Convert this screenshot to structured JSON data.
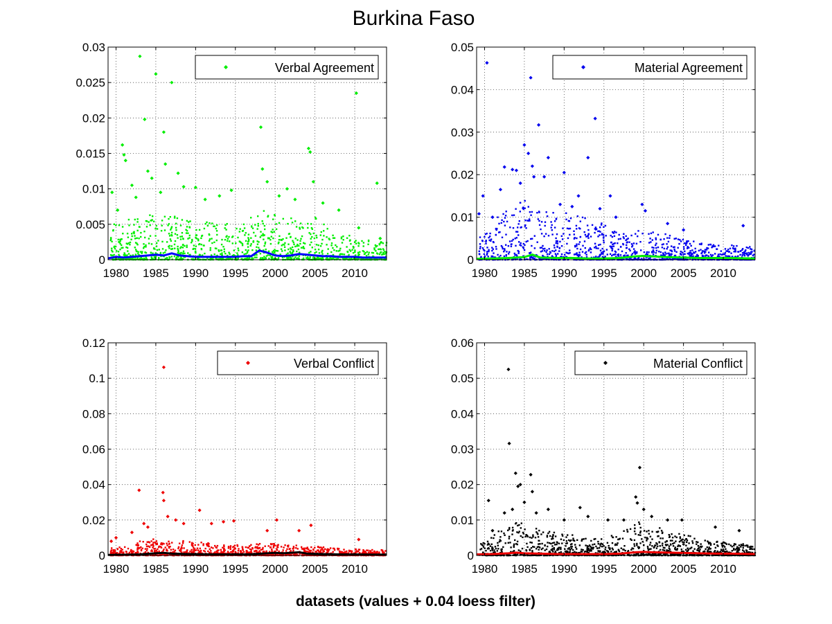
{
  "figure": {
    "title": "Burkina Faso",
    "xlabel": "datasets (values + 0.04 loess filter)"
  },
  "chart_data": [
    {
      "type": "scatter",
      "legend": "Verbal Agreement",
      "legend_position": "top-right",
      "grid": true,
      "xlim": [
        1979,
        2014
      ],
      "ylim": [
        0,
        0.03
      ],
      "xticks": [
        1980,
        1985,
        1990,
        1995,
        2000,
        2005,
        2010
      ],
      "yticks": [
        0,
        0.005,
        0.01,
        0.015,
        0.02,
        0.025,
        0.03
      ],
      "ytick_labels": [
        "0",
        "0.005",
        "0.01",
        "0.015",
        "0.02",
        "0.025",
        "0.03"
      ],
      "marker_color": "#00ee00",
      "trend_color": "#0000ff",
      "points": [
        [
          1979.5,
          0.0095
        ],
        [
          1980.2,
          0.007
        ],
        [
          1980.8,
          0.0162
        ],
        [
          1981.0,
          0.0148
        ],
        [
          1981.2,
          0.014
        ],
        [
          1982.0,
          0.0105
        ],
        [
          1982.5,
          0.0088
        ],
        [
          1983.0,
          0.0287
        ],
        [
          1983.6,
          0.0198
        ],
        [
          1984.0,
          0.0125
        ],
        [
          1984.5,
          0.0115
        ],
        [
          1985.0,
          0.0262
        ],
        [
          1985.6,
          0.0095
        ],
        [
          1986.0,
          0.018
        ],
        [
          1986.2,
          0.0135
        ],
        [
          1987.0,
          0.025
        ],
        [
          1987.8,
          0.0122
        ],
        [
          1988.5,
          0.0103
        ],
        [
          1990.0,
          0.0102
        ],
        [
          1991.2,
          0.0085
        ],
        [
          1993.0,
          0.009
        ],
        [
          1994.5,
          0.0098
        ],
        [
          1998.2,
          0.0187
        ],
        [
          1998.4,
          0.0128
        ],
        [
          1999.0,
          0.011
        ],
        [
          2000.5,
          0.009
        ],
        [
          2001.5,
          0.01
        ],
        [
          2002.5,
          0.0085
        ],
        [
          2004.2,
          0.0157
        ],
        [
          2004.4,
          0.0152
        ],
        [
          2004.8,
          0.011
        ],
        [
          2006.0,
          0.008
        ],
        [
          2008.0,
          0.007
        ],
        [
          2010.2,
          0.0235
        ],
        [
          2010.5,
          0.0045
        ],
        [
          2012.8,
          0.0108
        ],
        [
          2013.2,
          0.003
        ]
      ],
      "density": [
        [
          1979,
          0.004
        ],
        [
          1982,
          0.005
        ],
        [
          1985,
          0.0055
        ],
        [
          1988,
          0.005
        ],
        [
          1991,
          0.0045
        ],
        [
          1994,
          0.0045
        ],
        [
          1997,
          0.005
        ],
        [
          1999,
          0.006
        ],
        [
          2001,
          0.0055
        ],
        [
          2003,
          0.005
        ],
        [
          2005,
          0.005
        ],
        [
          2007,
          0.0035
        ],
        [
          2009,
          0.003
        ],
        [
          2011,
          0.0025
        ],
        [
          2014,
          0.002
        ]
      ],
      "trend": [
        [
          1979,
          0.0002
        ],
        [
          1980,
          0.0004
        ],
        [
          1981,
          0.0003
        ],
        [
          1982,
          0.0004
        ],
        [
          1983,
          0.0005
        ],
        [
          1984,
          0.0006
        ],
        [
          1985,
          0.0007
        ],
        [
          1986,
          0.0006
        ],
        [
          1987,
          0.0009
        ],
        [
          1988,
          0.0006
        ],
        [
          1989,
          0.0005
        ],
        [
          1990,
          0.0004
        ],
        [
          1991,
          0.0004
        ],
        [
          1992,
          0.0004
        ],
        [
          1993,
          0.0004
        ],
        [
          1994,
          0.0004
        ],
        [
          1995,
          0.0004
        ],
        [
          1996,
          0.0005
        ],
        [
          1997,
          0.0005
        ],
        [
          1998,
          0.0013
        ],
        [
          1999,
          0.001
        ],
        [
          2000,
          0.0006
        ],
        [
          2001,
          0.0005
        ],
        [
          2002,
          0.0006
        ],
        [
          2003,
          0.0008
        ],
        [
          2004,
          0.0007
        ],
        [
          2005,
          0.0006
        ],
        [
          2006,
          0.0005
        ],
        [
          2007,
          0.0005
        ],
        [
          2008,
          0.0004
        ],
        [
          2009,
          0.0004
        ],
        [
          2010,
          0.0004
        ],
        [
          2011,
          0.0003
        ],
        [
          2012,
          0.0003
        ],
        [
          2013,
          0.0003
        ],
        [
          2014,
          0.0003
        ]
      ]
    },
    {
      "type": "scatter",
      "legend": "Material Agreement",
      "legend_position": "top-right",
      "grid": true,
      "xlim": [
        1979,
        2014
      ],
      "ylim": [
        0,
        0.05
      ],
      "xticks": [
        1980,
        1985,
        1990,
        1995,
        2000,
        2005,
        2010
      ],
      "yticks": [
        0,
        0.01,
        0.02,
        0.03,
        0.04,
        0.05
      ],
      "ytick_labels": [
        "0",
        "0.01",
        "0.02",
        "0.03",
        "0.04",
        "0.05"
      ],
      "marker_color": "#0000ee",
      "trend_color": "#00ee00",
      "points": [
        [
          1979.3,
          0.0108
        ],
        [
          1979.8,
          0.015
        ],
        [
          1980.3,
          0.0463
        ],
        [
          1981.0,
          0.01
        ],
        [
          1982.0,
          0.0165
        ],
        [
          1982.5,
          0.0218
        ],
        [
          1983.5,
          0.0212
        ],
        [
          1984.0,
          0.021
        ],
        [
          1984.5,
          0.018
        ],
        [
          1985.0,
          0.027
        ],
        [
          1985.5,
          0.025
        ],
        [
          1985.8,
          0.0428
        ],
        [
          1986.0,
          0.022
        ],
        [
          1986.2,
          0.0195
        ],
        [
          1986.8,
          0.0317
        ],
        [
          1987.5,
          0.0195
        ],
        [
          1988.0,
          0.024
        ],
        [
          1989.5,
          0.013
        ],
        [
          1990.0,
          0.0205
        ],
        [
          1991.0,
          0.0125
        ],
        [
          1991.8,
          0.015
        ],
        [
          1993.0,
          0.024
        ],
        [
          1993.9,
          0.0332
        ],
        [
          1994.5,
          0.012
        ],
        [
          1995.8,
          0.015
        ],
        [
          1996.5,
          0.01
        ],
        [
          1999.8,
          0.013
        ],
        [
          2000.2,
          0.0115
        ],
        [
          2003.0,
          0.0085
        ],
        [
          2005.0,
          0.007
        ],
        [
          2012.5,
          0.008
        ]
      ],
      "density": [
        [
          1979,
          0.006
        ],
        [
          1982,
          0.009
        ],
        [
          1985,
          0.012
        ],
        [
          1988,
          0.01
        ],
        [
          1991,
          0.009
        ],
        [
          1994,
          0.008
        ],
        [
          1997,
          0.005
        ],
        [
          1999,
          0.006
        ],
        [
          2001,
          0.0055
        ],
        [
          2003,
          0.005
        ],
        [
          2005,
          0.004
        ],
        [
          2007,
          0.0035
        ],
        [
          2009,
          0.003
        ],
        [
          2011,
          0.003
        ],
        [
          2014,
          0.0025
        ]
      ],
      "trend": [
        [
          1979,
          0.0002
        ],
        [
          1981,
          0.0003
        ],
        [
          1983,
          0.0004
        ],
        [
          1985,
          0.0006
        ],
        [
          1986,
          0.0012
        ],
        [
          1987,
          0.0005
        ],
        [
          1989,
          0.0004
        ],
        [
          1991,
          0.0004
        ],
        [
          1993,
          0.0003
        ],
        [
          1995,
          0.0003
        ],
        [
          1997,
          0.0004
        ],
        [
          1999,
          0.0008
        ],
        [
          2000,
          0.0009
        ],
        [
          2001,
          0.0008
        ],
        [
          2003,
          0.0006
        ],
        [
          2005,
          0.0005
        ],
        [
          2007,
          0.0004
        ],
        [
          2009,
          0.0004
        ],
        [
          2011,
          0.0004
        ],
        [
          2014,
          0.0003
        ]
      ]
    },
    {
      "type": "scatter",
      "legend": "Verbal Conflict",
      "legend_position": "top-right",
      "grid": true,
      "xlim": [
        1979,
        2014
      ],
      "ylim": [
        0,
        0.12
      ],
      "xticks": [
        1980,
        1985,
        1990,
        1995,
        2000,
        2005,
        2010
      ],
      "yticks": [
        0,
        0.02,
        0.04,
        0.06,
        0.08,
        0.1,
        0.12
      ],
      "ytick_labels": [
        "0",
        "0.02",
        "0.04",
        "0.06",
        "0.08",
        "0.1",
        "0.12"
      ],
      "marker_color": "#ee0000",
      "trend_color": "#000000",
      "points": [
        [
          1979.4,
          0.008
        ],
        [
          1980.0,
          0.01
        ],
        [
          1982.0,
          0.013
        ],
        [
          1982.9,
          0.0368
        ],
        [
          1983.5,
          0.018
        ],
        [
          1984.0,
          0.016
        ],
        [
          1985.9,
          0.0355
        ],
        [
          1986.0,
          0.031
        ],
        [
          1986.0,
          0.1062
        ],
        [
          1986.5,
          0.022
        ],
        [
          1987.5,
          0.02
        ],
        [
          1988.5,
          0.018
        ],
        [
          1990.5,
          0.0255
        ],
        [
          1992.0,
          0.018
        ],
        [
          1993.5,
          0.019
        ],
        [
          1994.8,
          0.0195
        ],
        [
          1999.0,
          0.014
        ],
        [
          2000.2,
          0.02
        ],
        [
          2003.0,
          0.014
        ],
        [
          2004.5,
          0.017
        ],
        [
          2010.5,
          0.009
        ]
      ],
      "density": [
        [
          1979,
          0.003
        ],
        [
          1982,
          0.006
        ],
        [
          1985,
          0.008
        ],
        [
          1988,
          0.007
        ],
        [
          1991,
          0.006
        ],
        [
          1994,
          0.005
        ],
        [
          1997,
          0.005
        ],
        [
          1999,
          0.006
        ],
        [
          2001,
          0.005
        ],
        [
          2003,
          0.005
        ],
        [
          2005,
          0.0045
        ],
        [
          2007,
          0.0035
        ],
        [
          2009,
          0.003
        ],
        [
          2011,
          0.003
        ],
        [
          2014,
          0.0025
        ]
      ],
      "trend": [
        [
          1979,
          0.0003
        ],
        [
          1981,
          0.0004
        ],
        [
          1983,
          0.0006
        ],
        [
          1985,
          0.0012
        ],
        [
          1986,
          0.0015
        ],
        [
          1987,
          0.001
        ],
        [
          1989,
          0.0008
        ],
        [
          1991,
          0.0007
        ],
        [
          1993,
          0.0006
        ],
        [
          1995,
          0.0006
        ],
        [
          1997,
          0.0007
        ],
        [
          1999,
          0.0012
        ],
        [
          2000,
          0.0015
        ],
        [
          2001,
          0.0012
        ],
        [
          2003,
          0.0018
        ],
        [
          2004,
          0.001
        ],
        [
          2006,
          0.0008
        ],
        [
          2008,
          0.0006
        ],
        [
          2010,
          0.0006
        ],
        [
          2012,
          0.0005
        ],
        [
          2014,
          0.0005
        ]
      ]
    },
    {
      "type": "scatter",
      "legend": "Material Conflict",
      "legend_position": "top-right",
      "grid": true,
      "xlim": [
        1979,
        2014
      ],
      "ylim": [
        0,
        0.06
      ],
      "xticks": [
        1980,
        1985,
        1990,
        1995,
        2000,
        2005,
        2010
      ],
      "yticks": [
        0,
        0.01,
        0.02,
        0.03,
        0.04,
        0.05,
        0.06
      ],
      "ytick_labels": [
        "0",
        "0.01",
        "0.02",
        "0.03",
        "0.04",
        "0.05",
        "0.06"
      ],
      "marker_color": "#000000",
      "trend_color": "#ee0000",
      "points": [
        [
          1980.5,
          0.0155
        ],
        [
          1981.0,
          0.007
        ],
        [
          1982.5,
          0.012
        ],
        [
          1983.0,
          0.0525
        ],
        [
          1983.1,
          0.0316
        ],
        [
          1983.5,
          0.013
        ],
        [
          1983.9,
          0.0232
        ],
        [
          1984.2,
          0.0195
        ],
        [
          1984.5,
          0.02
        ],
        [
          1985.0,
          0.015
        ],
        [
          1985.8,
          0.0228
        ],
        [
          1986.0,
          0.018
        ],
        [
          1986.5,
          0.012
        ],
        [
          1988.0,
          0.013
        ],
        [
          1990.0,
          0.01
        ],
        [
          1992.0,
          0.0135
        ],
        [
          1993.0,
          0.011
        ],
        [
          1995.5,
          0.01
        ],
        [
          1997.5,
          0.01
        ],
        [
          1999.0,
          0.0165
        ],
        [
          1999.2,
          0.0148
        ],
        [
          1999.5,
          0.0248
        ],
        [
          2000.0,
          0.013
        ],
        [
          2001.0,
          0.011
        ],
        [
          2003.0,
          0.01
        ],
        [
          2004.8,
          0.01
        ],
        [
          2009.0,
          0.008
        ],
        [
          2012.0,
          0.007
        ]
      ],
      "density": [
        [
          1979,
          0.003
        ],
        [
          1982,
          0.006
        ],
        [
          1984,
          0.008
        ],
        [
          1986,
          0.007
        ],
        [
          1988,
          0.006
        ],
        [
          1991,
          0.005
        ],
        [
          1994,
          0.004
        ],
        [
          1997,
          0.005
        ],
        [
          1999,
          0.008
        ],
        [
          2001,
          0.007
        ],
        [
          2003,
          0.006
        ],
        [
          2005,
          0.005
        ],
        [
          2007,
          0.004
        ],
        [
          2009,
          0.0035
        ],
        [
          2011,
          0.003
        ],
        [
          2014,
          0.0025
        ]
      ],
      "trend": [
        [
          1979,
          0.0003
        ],
        [
          1981,
          0.0004
        ],
        [
          1983,
          0.0006
        ],
        [
          1984,
          0.0008
        ],
        [
          1985,
          0.0006
        ],
        [
          1987,
          0.0005
        ],
        [
          1989,
          0.0004
        ],
        [
          1991,
          0.0004
        ],
        [
          1993,
          0.0004
        ],
        [
          1995,
          0.0004
        ],
        [
          1997,
          0.0005
        ],
        [
          1999,
          0.0009
        ],
        [
          2000,
          0.001
        ],
        [
          2001,
          0.0009
        ],
        [
          2003,
          0.0008
        ],
        [
          2005,
          0.0007
        ],
        [
          2007,
          0.0006
        ],
        [
          2009,
          0.0005
        ],
        [
          2011,
          0.0005
        ],
        [
          2014,
          0.0004
        ]
      ]
    }
  ]
}
